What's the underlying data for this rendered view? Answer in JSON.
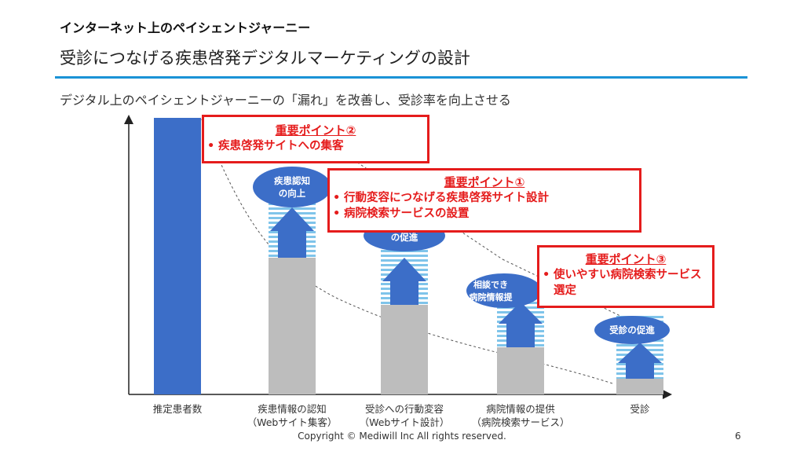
{
  "header": {
    "title": "インターネット上のペイシェントジャーニー",
    "main_title": "受診につなげる疾患啓発デジタルマーケティングの設計"
  },
  "subtitle": "デジタル上のペイシェントジャーニーの「漏れ」を改善し、受診率を向上させる",
  "categories": [
    {
      "line1": "推定患者数",
      "line2": ""
    },
    {
      "line1": "疾患情報の認知",
      "line2": "（Webサイト集客）"
    },
    {
      "line1": "受診への行動変容",
      "line2": "（Webサイト設計）"
    },
    {
      "line1": "病院情報の提供",
      "line2": "（病院検索サービス）"
    },
    {
      "line1": "受診",
      "line2": ""
    }
  ],
  "ovals": [
    {
      "line1": "疾患認知",
      "line2": "の向上"
    },
    {
      "line1": "の促進",
      "line2": ""
    },
    {
      "line1": "相談でき",
      "line2": "病院情報提"
    },
    {
      "line1": "受診の促進",
      "line2": ""
    }
  ],
  "callouts": [
    {
      "title": "重要ポイント②",
      "items": [
        "疾患啓発サイトへの集客"
      ]
    },
    {
      "title": "重要ポイント①",
      "items": [
        "行動変容につなげる疾患啓発サイト設計",
        "病院検索サービスの設置"
      ]
    },
    {
      "title": "重要ポイント③",
      "items": [
        "使いやすい病院検索サービス選定"
      ]
    }
  ],
  "colors": {
    "accent": "#1a93d6",
    "bar_blue": "#3c6ec8",
    "bar_gray": "#bdbdbd",
    "stripe": "#7fc4ea",
    "callout_red": "#e51c1c"
  },
  "footer": {
    "copyright": "Copyright © Mediwill Inc All rights reserved.",
    "page": "6"
  }
}
